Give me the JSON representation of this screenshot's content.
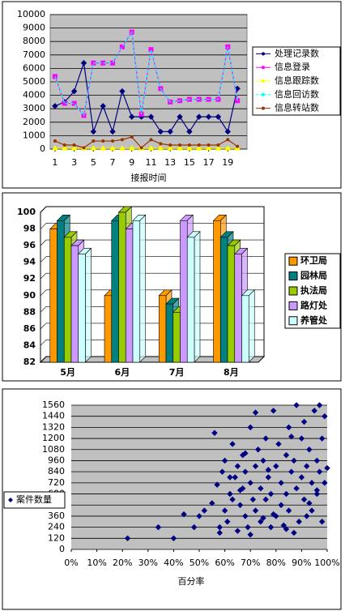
{
  "chart_data": [
    {
      "type": "line",
      "x": [
        1,
        2,
        3,
        4,
        5,
        6,
        7,
        8,
        9,
        10,
        11,
        12,
        13,
        14,
        15,
        16,
        17,
        18,
        19,
        20
      ],
      "xlim": [
        0.5,
        21
      ],
      "xticks": [
        1,
        3,
        5,
        7,
        9,
        11,
        13,
        15,
        17,
        19
      ],
      "xlabel": "接报时间",
      "ylim": [
        0,
        10000
      ],
      "yticks": [
        0,
        1000,
        2000,
        3000,
        4000,
        5000,
        6000,
        7000,
        8000,
        9000,
        10000
      ],
      "grid": true,
      "legend": "right",
      "series": [
        {
          "name": "处理记录数",
          "color": "#000080",
          "marker": "diamond",
          "values": [
            3200,
            3500,
            4300,
            6400,
            1300,
            3200,
            1300,
            4300,
            2400,
            2400,
            2400,
            1300,
            1300,
            2400,
            1300,
            2400,
            2400,
            2400,
            1300,
            4500
          ]
        },
        {
          "name": "信息登录",
          "color": "#ff00ff",
          "marker": "square",
          "values": [
            5400,
            3400,
            3400,
            2500,
            6400,
            6400,
            6400,
            7600,
            8700,
            2600,
            7400,
            4500,
            3500,
            3600,
            3700,
            3700,
            3700,
            3700,
            7600,
            3600
          ]
        },
        {
          "name": "信息跟踪数",
          "color": "#ffff00",
          "marker": "triangle",
          "values": [
            50,
            50,
            50,
            50,
            50,
            50,
            50,
            50,
            50,
            50,
            50,
            50,
            50,
            50,
            50,
            50,
            50,
            50,
            50,
            50
          ]
        },
        {
          "name": "信息回访数",
          "color": "#00ffff",
          "marker": "none",
          "dash": true,
          "values": [
            5400,
            3400,
            3400,
            2500,
            6400,
            6400,
            6400,
            7600,
            8700,
            2600,
            7400,
            4500,
            3500,
            3600,
            3700,
            3700,
            3700,
            3700,
            7600,
            3600
          ]
        },
        {
          "name": "信息转站数",
          "color": "#993300",
          "marker": "dot",
          "values": [
            600,
            300,
            300,
            100,
            600,
            600,
            600,
            700,
            900,
            100,
            700,
            400,
            300,
            300,
            300,
            300,
            300,
            300,
            700,
            200
          ]
        }
      ]
    },
    {
      "type": "bar",
      "categories": [
        "5月",
        "6月",
        "7月",
        "8月"
      ],
      "ylim": [
        82,
        100
      ],
      "yticks": [
        82,
        84,
        86,
        88,
        90,
        92,
        94,
        96,
        98,
        100
      ],
      "grid": true,
      "legend": "right",
      "series": [
        {
          "name": "环卫局",
          "color": "#ff9900",
          "values": [
            98,
            90,
            90,
            99
          ]
        },
        {
          "name": "园林局",
          "color": "#008080",
          "values": [
            99,
            99,
            89,
            97
          ]
        },
        {
          "name": "执法局",
          "color": "#99cc00",
          "values": [
            97,
            100,
            88,
            96
          ]
        },
        {
          "name": "路灯处",
          "color": "#cc99ff",
          "values": [
            96,
            98,
            99,
            95
          ]
        },
        {
          "name": "养管处",
          "color": "#ccffff",
          "values": [
            95,
            99,
            97,
            90
          ]
        }
      ]
    },
    {
      "type": "scatter",
      "xlabel": "百分率",
      "xlim": [
        0,
        100
      ],
      "xticks": [
        {
          "value": 0,
          "label": "0%"
        },
        {
          "value": 10,
          "label": "10%"
        },
        {
          "value": 20,
          "label": "20%"
        },
        {
          "value": 30,
          "label": "30%"
        },
        {
          "value": 40,
          "label": "40%"
        },
        {
          "value": 50,
          "label": "50%"
        },
        {
          "value": 60,
          "label": "60%"
        },
        {
          "value": 70,
          "label": "70%"
        },
        {
          "value": 80,
          "label": "80%"
        },
        {
          "value": 90,
          "label": "90%"
        },
        {
          "value": 100,
          "label": "100%"
        }
      ],
      "ylim": [
        0,
        1560
      ],
      "yticks": [
        0,
        120,
        240,
        360,
        480,
        600,
        720,
        840,
        960,
        1080,
        1200,
        1320,
        1440,
        1560
      ],
      "grid": true,
      "legend": "left",
      "series": [
        {
          "name": "案件数量",
          "color": "#000080",
          "x": [
            22,
            34,
            40,
            44,
            48,
            50,
            52,
            55,
            56,
            57,
            58,
            59,
            60,
            60,
            61,
            62,
            63,
            63,
            64,
            65,
            65,
            66,
            67,
            67,
            68,
            68,
            69,
            70,
            70,
            71,
            72,
            72,
            73,
            74,
            74,
            75,
            76,
            76,
            77,
            78,
            78,
            79,
            80,
            80,
            81,
            82,
            82,
            83,
            84,
            84,
            85,
            85,
            86,
            87,
            87,
            88,
            88,
            89,
            90,
            90,
            91,
            92,
            92,
            93,
            94,
            94,
            95,
            96,
            96,
            97,
            97,
            98,
            98,
            99,
            99,
            100,
            58,
            66,
            72,
            79,
            86,
            93,
            62,
            70,
            77,
            84,
            91,
            96,
            68,
            75
          ],
          "values": [
            120,
            240,
            120,
            380,
            240,
            360,
            420,
            500,
            1260,
            700,
            180,
            840,
            420,
            960,
            300,
            600,
            1140,
            540,
            780,
            200,
            900,
            480,
            660,
            1020,
            360,
            840,
            240,
            720,
            1320,
            540,
            900,
            420,
            1080,
            300,
            660,
            960,
            540,
            1200,
            780,
            240,
            600,
            1500,
            360,
            900,
            1140,
            480,
            720,
            260,
            1020,
            600,
            1320,
            420,
            840,
            180,
            960,
            660,
            1560,
            300,
            780,
            1200,
            540,
            900,
            360,
            1080,
            720,
            420,
            1500,
            600,
            960,
            840,
            1560,
            300,
            1200,
            720,
            1440,
            880,
            240,
            640,
            1480,
            380,
            1220,
            500,
            780,
            160,
            860,
            220,
            1380,
            640,
            1040,
            340
          ]
        }
      ]
    }
  ]
}
